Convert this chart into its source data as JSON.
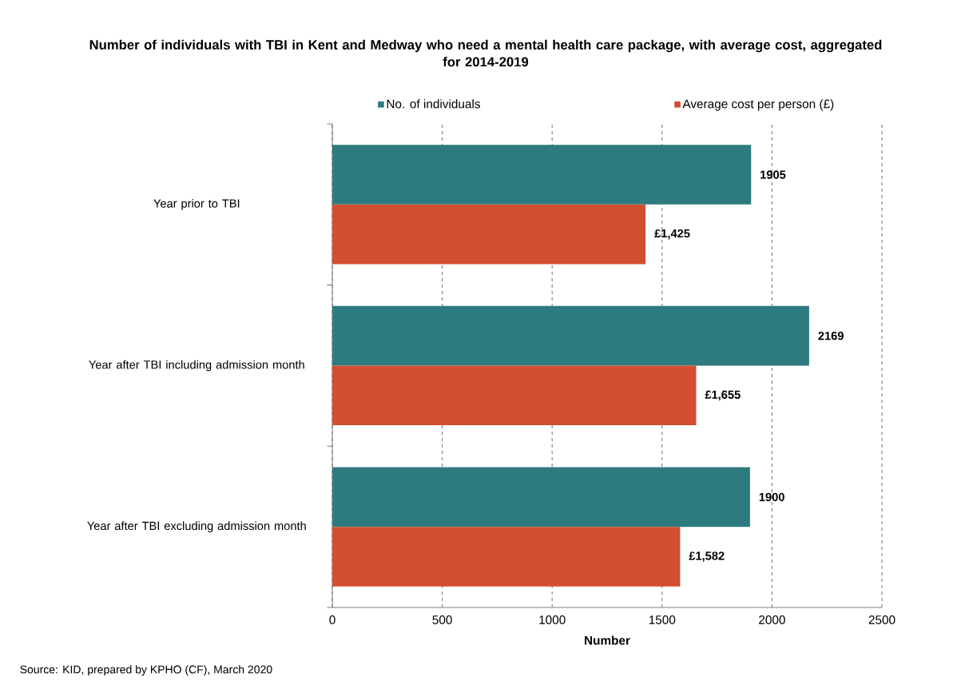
{
  "chart_data": {
    "type": "bar",
    "orientation": "horizontal",
    "title": "Number of individuals with TBI in Kent and Medway who need a mental health care package, with average cost, aggregated for 2014-2019",
    "xlabel": "Number",
    "categories": [
      "Year prior to TBI",
      "Year after TBI including admission month",
      "Year after TBI excluding admission month"
    ],
    "series": [
      {
        "name": "No. of individuals",
        "color": "#2e7b7f",
        "values": [
          1905,
          2169,
          1900
        ],
        "value_labels": [
          "1905",
          "2169",
          "1900"
        ]
      },
      {
        "name": "Average cost per person (£)",
        "color": "#d14f30",
        "values": [
          1425,
          1655,
          1582
        ],
        "value_labels": [
          "£1,425",
          "£1,655",
          "£1,582"
        ]
      }
    ],
    "xlim": [
      0,
      2500
    ],
    "xticks": [
      0,
      500,
      1000,
      1500,
      2000,
      2500
    ],
    "grid": "x",
    "legend": "top",
    "annotations": [
      "Source: KID, prepared by KPHO (CF), March 2020"
    ]
  }
}
